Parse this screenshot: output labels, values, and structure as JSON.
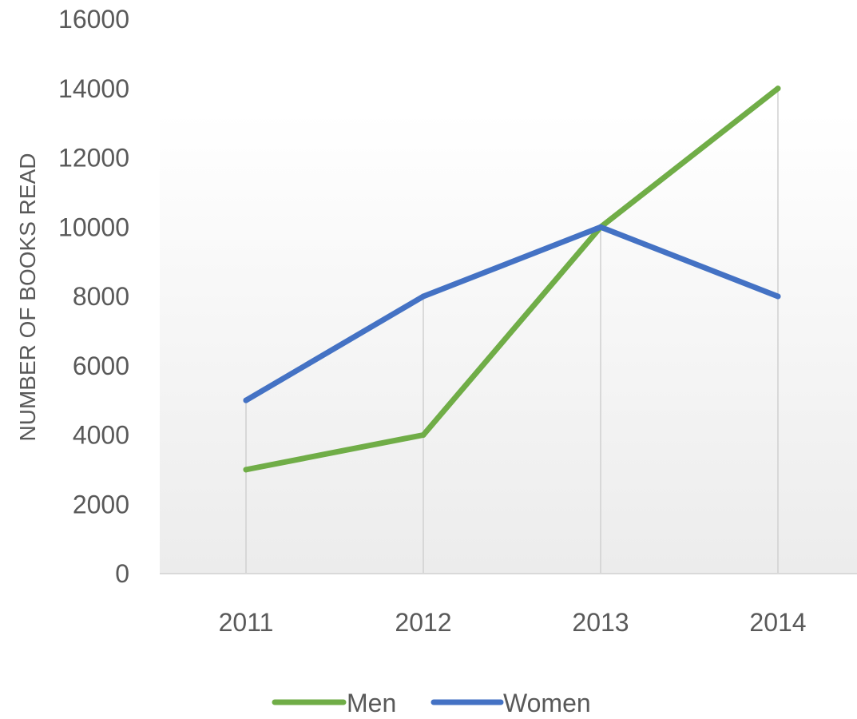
{
  "chart_data": {
    "type": "line",
    "title": "",
    "xlabel": "",
    "ylabel": "NUMBER OF BOOKS READ",
    "categories": [
      "2011",
      "2012",
      "2013",
      "2014"
    ],
    "ylim": [
      0,
      16000
    ],
    "yticks": [
      0,
      2000,
      4000,
      6000,
      8000,
      10000,
      12000,
      14000,
      16000
    ],
    "grid": "vertical drop lines at each category",
    "legend_position": "bottom",
    "series": [
      {
        "name": "Men",
        "color": "#70ad47",
        "values": [
          3000,
          4000,
          10000,
          14000
        ]
      },
      {
        "name": "Women",
        "color": "#4472c4",
        "values": [
          5000,
          8000,
          10000,
          8000
        ]
      }
    ],
    "colors": {
      "axis_text": "#595959",
      "drop_lines": "#d0d0d0",
      "baseline": "#d9d9d9",
      "plot_gradient_top": "#ffffff",
      "plot_gradient_bottom": "#ececec"
    }
  }
}
